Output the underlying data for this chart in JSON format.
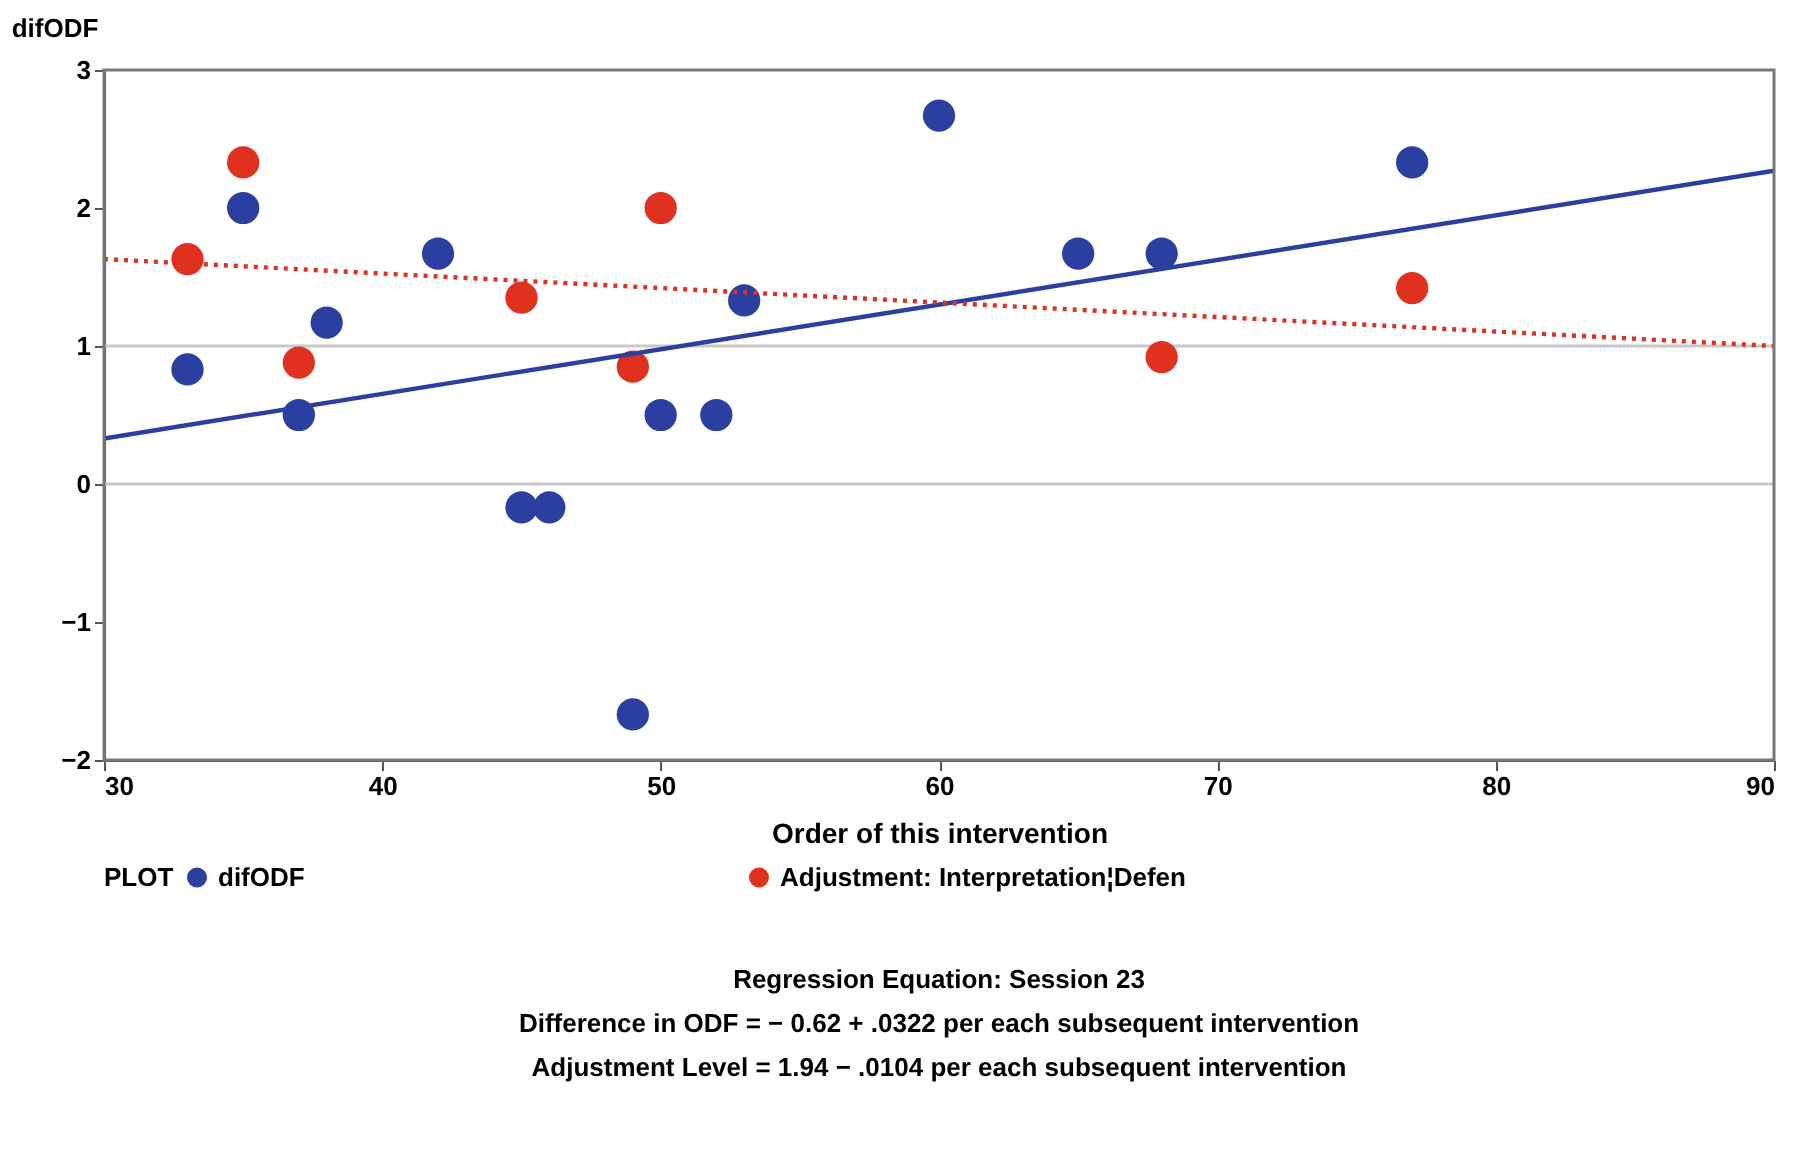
{
  "chart_data": {
    "type": "scatter",
    "xlabel": "Order of this intervention",
    "ylabel": "difODF",
    "legend_title": "PLOT",
    "xlim": [
      30,
      90
    ],
    "xticks": [
      30,
      40,
      50,
      60,
      70,
      80,
      90
    ],
    "ylim": [
      -2,
      3
    ],
    "yticks": [
      -2,
      -1,
      0,
      1,
      2,
      3
    ],
    "series": [
      {
        "name": "difODF",
        "color": "#2b3fa0",
        "marker": "circle",
        "x": [
          33,
          35,
          37,
          38,
          42,
          45,
          46,
          49,
          50,
          52,
          53,
          60,
          65,
          68,
          77
        ],
        "values": [
          0.83,
          2.0,
          0.5,
          1.17,
          1.67,
          -0.17,
          -0.17,
          -1.67,
          0.5,
          0.5,
          1.33,
          2.67,
          1.67,
          1.67,
          2.33
        ]
      },
      {
        "name": "Adjustment: Interpretation¦Defen",
        "color": "#e0301e",
        "marker": "circle",
        "x": [
          33,
          35,
          37,
          45,
          49,
          50,
          68,
          77
        ],
        "values": [
          1.63,
          2.33,
          0.88,
          1.35,
          0.85,
          2.0,
          0.92,
          1.42
        ]
      },
      {
        "color": "#2b3fa0",
        "type": "line",
        "line_style": "solid",
        "x": [
          30,
          90
        ],
        "values": [
          0.33,
          2.27
        ]
      },
      {
        "color": "#e0301e",
        "type": "line",
        "line_style": "dotted",
        "x": [
          30,
          90
        ],
        "values": [
          1.63,
          1.0
        ]
      }
    ],
    "ref_lines": [
      {
        "axis": "y",
        "value": 0,
        "color": "#c8c8c8"
      },
      {
        "axis": "y",
        "value": 1,
        "color": "#c8c8c8"
      }
    ],
    "legend": "bottom",
    "grid": false,
    "annotations": [
      "Regression Equation: Session 23",
      "Difference in ODF =  − 0.62 + .0322  per each subsequent intervention",
      "Adjustment Level  =     1.94 − .0104 per each subsequent intervention"
    ]
  }
}
